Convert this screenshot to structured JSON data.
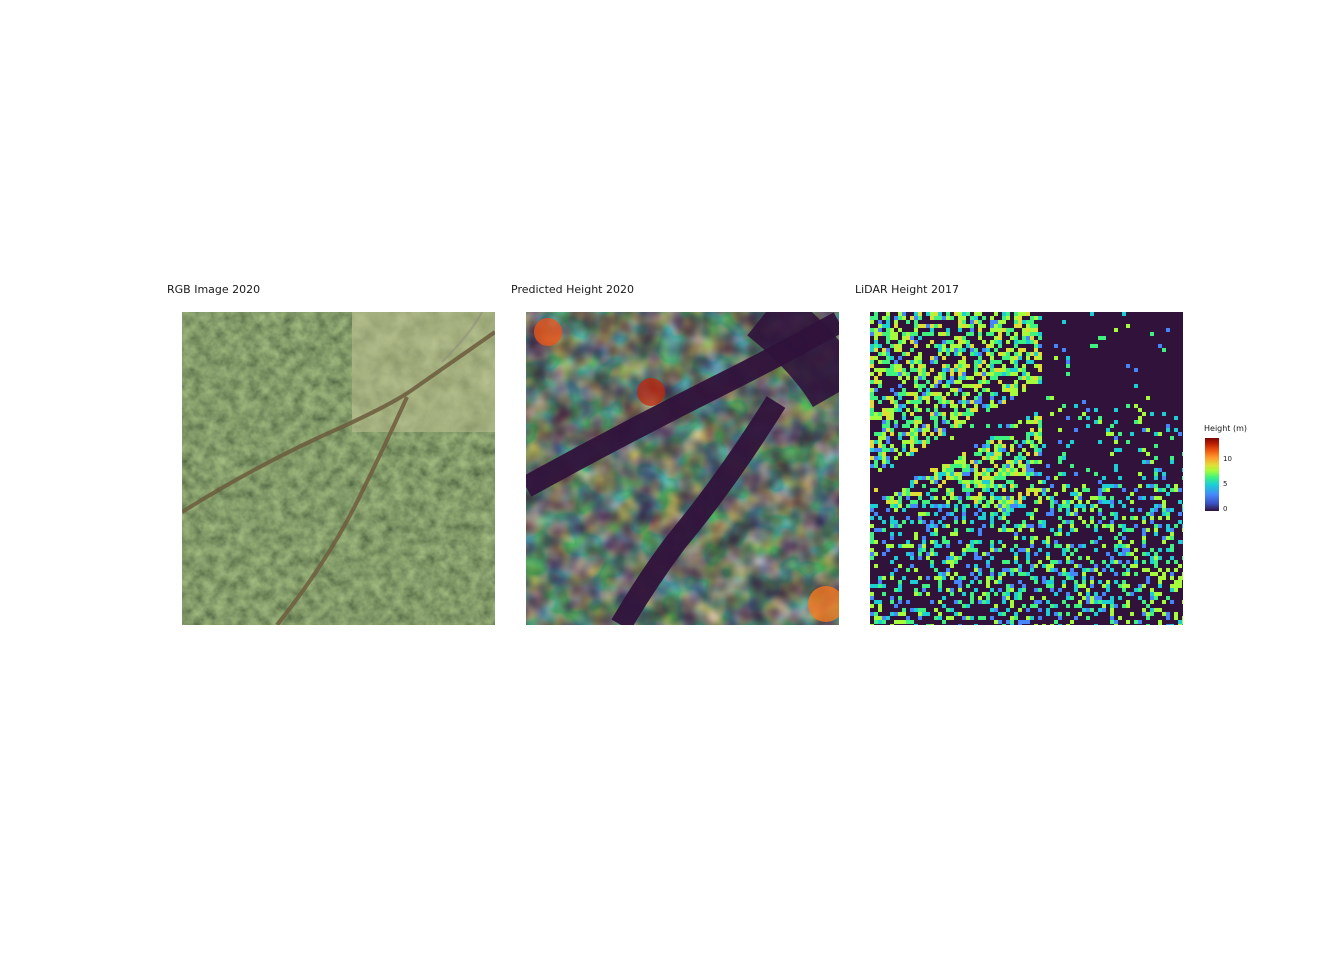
{
  "panels": [
    {
      "title": "RGB Image 2020"
    },
    {
      "title": "Predicted Height 2020"
    },
    {
      "title": "LiDAR Height 2017"
    }
  ],
  "legend": {
    "title": "Height (m)",
    "ticks": [
      "10",
      "5",
      "0"
    ],
    "colormap": [
      "#30123b",
      "#4686fb",
      "#1ccfd5",
      "#3ff27f",
      "#a4fc3c",
      "#e1dd37",
      "#fe9b2d",
      "#ea4f0d",
      "#7a0403"
    ]
  }
}
